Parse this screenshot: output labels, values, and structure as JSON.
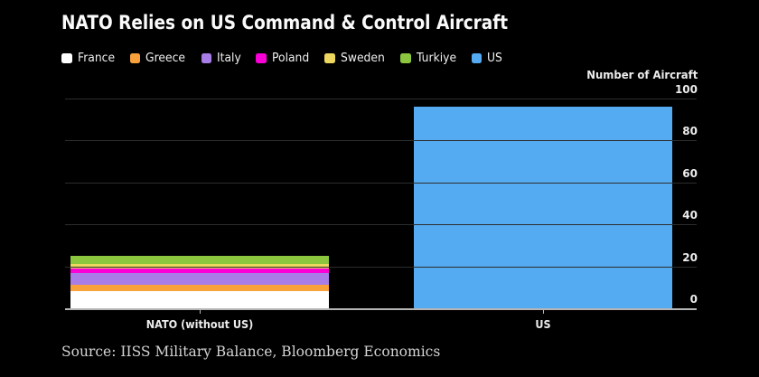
{
  "title": "NATO Relies on US Command & Control Aircraft",
  "source": "Source: IISS Military Balance, Bloomberg Economics",
  "colors": {
    "background": "#000000",
    "gridline": "#2d2d2d",
    "baseline": "#b5b5b5",
    "title_text": "#fafafa",
    "tick_text": "#ededed",
    "legend_text": "#f0f0f0",
    "source_text": "#d4d4d4"
  },
  "chart_data": {
    "type": "bar",
    "stacked": true,
    "categories": [
      "NATO (without US)",
      "US"
    ],
    "series": [
      {
        "name": "France",
        "color": "#ffffff",
        "values": [
          8,
          0
        ]
      },
      {
        "name": "Greece",
        "color": "#f9a13b",
        "values": [
          3,
          0
        ]
      },
      {
        "name": "Italy",
        "color": "#a97de8",
        "values": [
          6,
          0
        ]
      },
      {
        "name": "Poland",
        "color": "#fa00d6",
        "values": [
          2,
          0
        ]
      },
      {
        "name": "Sweden",
        "color": "#edd75f",
        "values": [
          2,
          0
        ]
      },
      {
        "name": "Turkiye",
        "color": "#8cc63f",
        "values": [
          4,
          0
        ]
      },
      {
        "name": "US",
        "color": "#55abf2",
        "values": [
          0,
          96
        ]
      }
    ],
    "title": "NATO Relies on US Command & Control Aircraft",
    "xlabel": "",
    "ylabel": "Number of Aircraft",
    "ylim": [
      0,
      100
    ],
    "yticks": [
      0,
      20,
      40,
      60,
      80,
      100
    ],
    "grid": true,
    "legend_position": "top",
    "yaxis_side": "right"
  }
}
